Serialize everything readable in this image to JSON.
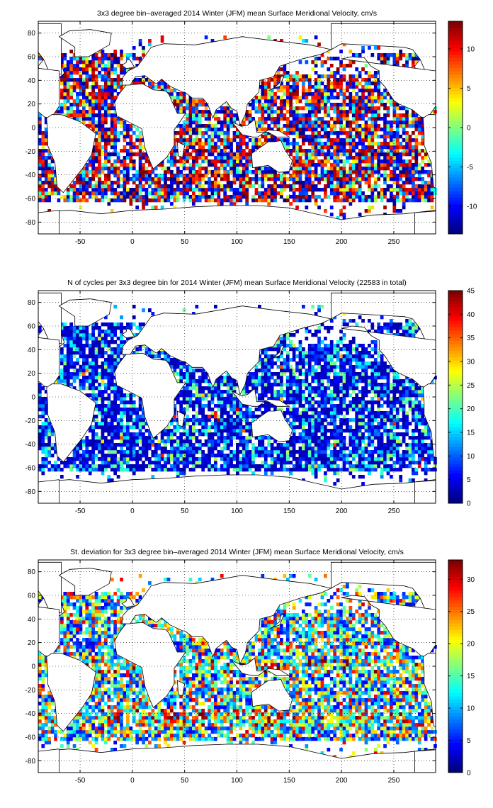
{
  "chart_data": [
    {
      "type": "heatmap",
      "title": "3x3 degree bin–averaged 2014 Winter (JFM) mean Surface Meridional Velocity, cm/s",
      "xlim": [
        -90,
        290
      ],
      "ylim": [
        -90,
        90
      ],
      "xticks": [
        -50,
        0,
        50,
        100,
        150,
        200,
        250
      ],
      "yticks": [
        -80,
        -60,
        -40,
        -20,
        0,
        20,
        40,
        60,
        80
      ],
      "grid": true,
      "bin_size_deg": 3,
      "colorbar": {
        "min": -13.5,
        "max": 13.5,
        "ticks": [
          -10,
          -5,
          0,
          5,
          10
        ],
        "colormap": "jet"
      }
    },
    {
      "type": "heatmap",
      "title": "N of cycles per 3x3 degree bin for 2014 Winter (JFM) mean Surface Meridional Velocity (22583 in total)",
      "xlim": [
        -90,
        290
      ],
      "ylim": [
        -90,
        90
      ],
      "xticks": [
        -50,
        0,
        50,
        100,
        150,
        200,
        250
      ],
      "yticks": [
        -80,
        -60,
        -40,
        -20,
        0,
        20,
        40,
        60,
        80
      ],
      "grid": true,
      "bin_size_deg": 3,
      "colorbar": {
        "min": 0,
        "max": 45,
        "ticks": [
          0,
          5,
          10,
          15,
          20,
          25,
          30,
          35,
          40,
          45
        ],
        "colormap": "jet"
      }
    },
    {
      "type": "heatmap",
      "title": "St. deviation for 3x3 degree bin–averaged 2014 Winter (JFM) mean Surface Meridional Velocity, cm/s",
      "xlim": [
        -90,
        290
      ],
      "ylim": [
        -90,
        90
      ],
      "xticks": [
        -50,
        0,
        50,
        100,
        150,
        200,
        250
      ],
      "yticks": [
        -80,
        -60,
        -40,
        -20,
        0,
        20,
        40,
        60,
        80
      ],
      "grid": true,
      "bin_size_deg": 3,
      "colorbar": {
        "min": 0,
        "max": 33,
        "ticks": [
          0,
          5,
          10,
          15,
          20,
          25,
          30
        ],
        "colormap": "jet"
      }
    }
  ]
}
